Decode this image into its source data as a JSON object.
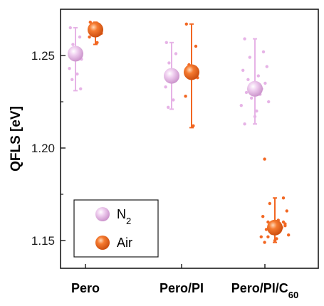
{
  "chart_data": {
    "type": "scatter",
    "ylabel": "QFLS [eV]",
    "ylim": [
      1.135,
      1.275
    ],
    "yticks": [
      1.15,
      1.2,
      1.25
    ],
    "ytick_labels": [
      "1.15",
      "1.20",
      "1.25"
    ],
    "categories": [
      {
        "label": "Pero",
        "sub": ""
      },
      {
        "label": "Pero/PI",
        "sub": ""
      },
      {
        "label": "Pero/PI/C",
        "sub": "60"
      }
    ],
    "legend": {
      "position": "bottom-left",
      "entries": [
        {
          "label": "N",
          "sub": "2",
          "color": "#e6b3e6"
        },
        {
          "label": "Air",
          "sub": "",
          "color": "#f26722"
        }
      ]
    },
    "series": [
      {
        "name": "N2",
        "color": "#e6b3e6",
        "mean": [
          1.251,
          1.239,
          1.232
        ],
        "err_low": [
          1.231,
          1.221,
          1.213
        ],
        "err_high": [
          1.265,
          1.257,
          1.259
        ],
        "points": [
          [
            1.265,
            1.26,
            1.256,
            1.248,
            1.243,
            1.24,
            1.237,
            1.232
          ],
          [
            1.257,
            1.251,
            1.246,
            1.24,
            1.233,
            1.226,
            1.222
          ],
          [
            1.259,
            1.252,
            1.249,
            1.244,
            1.242,
            1.239,
            1.237,
            1.235,
            1.233,
            1.232,
            1.23,
            1.229,
            1.227,
            1.225,
            1.223,
            1.22,
            1.217,
            1.213
          ]
        ]
      },
      {
        "name": "Air",
        "color": "#f26722",
        "mean": [
          1.264,
          1.241,
          1.157
        ],
        "err_low": [
          1.256,
          1.211,
          1.149
        ],
        "err_high": [
          1.268,
          1.267,
          1.173
        ],
        "points": [
          [
            1.268,
            1.266,
            1.264,
            1.262,
            1.26,
            1.257
          ],
          [
            1.267,
            1.255,
            1.245,
            1.238,
            1.228,
            1.212
          ],
          [
            1.194,
            1.173,
            1.17,
            1.166,
            1.163,
            1.161,
            1.16,
            1.159,
            1.158,
            1.157,
            1.156,
            1.155,
            1.154,
            1.153,
            1.152,
            1.151,
            1.15,
            1.149,
            1.16,
            1.155,
            1.158,
            1.152
          ]
        ]
      }
    ]
  }
}
